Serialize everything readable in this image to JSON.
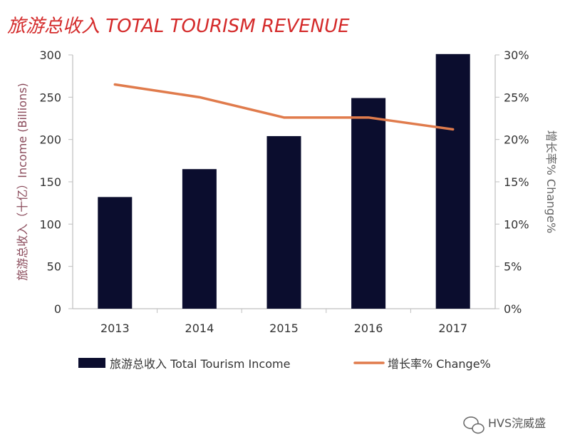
{
  "title": "旅游总收入 TOTAL TOURISM REVENUE",
  "watermark": "HVS浣威盛",
  "colors": {
    "title": "#d42a2a",
    "bar": "#0b0d2e",
    "line": "#e07b4c",
    "left_axis_title": "#8a4a5a",
    "right_axis_title": "#666666"
  },
  "chart_data": {
    "type": "bar",
    "categories": [
      "2013",
      "2014",
      "2015",
      "2016",
      "2017"
    ],
    "series": [
      {
        "name": "旅游总收入 Total Tourism Income",
        "type": "bar",
        "axis": "left",
        "values": [
          132,
          165,
          204,
          249,
          301
        ]
      },
      {
        "name": "增长率% Change%",
        "type": "line",
        "axis": "right",
        "values": [
          26.5,
          25.0,
          22.6,
          22.6,
          21.2
        ]
      }
    ],
    "ylabel": "旅游总收入（十亿）Income (Billions)",
    "y2label": "增长率% Change%",
    "ylim": [
      0,
      300
    ],
    "y2lim": [
      0,
      30
    ],
    "yticks": [
      "0",
      "50",
      "100",
      "150",
      "200",
      "250",
      "300"
    ],
    "y2ticks": [
      "0%",
      "5%",
      "10%",
      "15%",
      "20%",
      "25%",
      "30%"
    ],
    "grid": false,
    "legend_position": "bottom"
  }
}
